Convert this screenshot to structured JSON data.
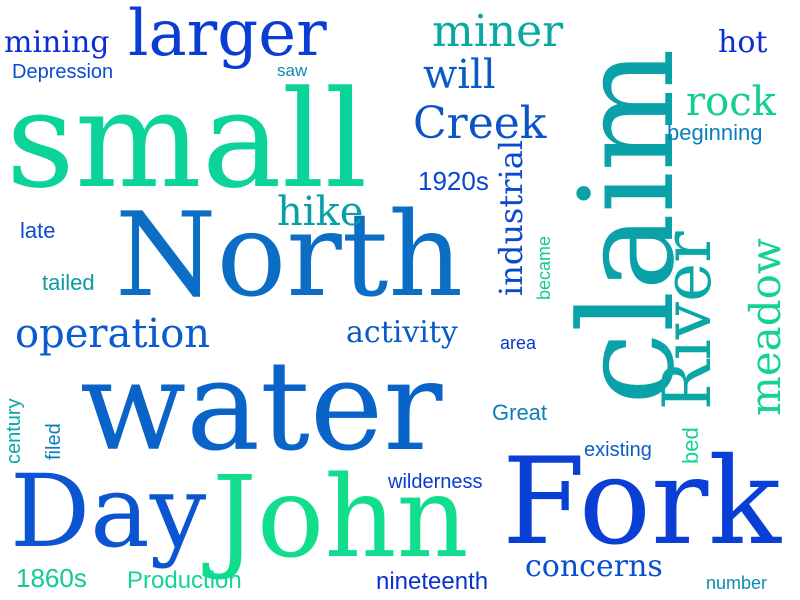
{
  "words": [
    {
      "text": "small",
      "color": "#0bd39a"
    },
    {
      "text": "water",
      "color": "#0a63c9"
    },
    {
      "text": "North",
      "color": "#0b6dc4"
    },
    {
      "text": "claim",
      "color": "#0aa2a8"
    },
    {
      "text": "Fork",
      "color": "#0a3fd6"
    },
    {
      "text": "John",
      "color": "#11de8d"
    },
    {
      "text": "Day",
      "color": "#0b55d2"
    },
    {
      "text": "larger",
      "color": "#0a3dd4"
    },
    {
      "text": "River",
      "color": "#0aa7a6"
    },
    {
      "text": "miner",
      "color": "#0aa8a2"
    },
    {
      "text": "Creek",
      "color": "#0a54c8"
    },
    {
      "text": "operation",
      "color": "#0a5ad0"
    },
    {
      "text": "meadow",
      "color": "#13d38e"
    },
    {
      "text": "hike",
      "color": "#0a9fa6"
    },
    {
      "text": "rock",
      "color": "#12cf8f"
    },
    {
      "text": "will",
      "color": "#0a5bc6"
    },
    {
      "text": "industrial",
      "color": "#0a49cc"
    },
    {
      "text": "mining",
      "color": "#0a2ed6"
    },
    {
      "text": "hot",
      "color": "#0a30d4"
    },
    {
      "text": "activity",
      "color": "#0a58c9"
    },
    {
      "text": "concerns",
      "color": "#0a4fd0"
    },
    {
      "text": "Production",
      "color": "#11d496"
    },
    {
      "text": "1860s",
      "color": "#12c994"
    },
    {
      "text": "1920s",
      "color": "#0a46cf"
    },
    {
      "text": "nineteenth",
      "color": "#0a32d0"
    },
    {
      "text": "Depression",
      "color": "#0a4ccf"
    },
    {
      "text": "beginning",
      "color": "#0a7fbd"
    },
    {
      "text": "Great",
      "color": "#0a7ebd"
    },
    {
      "text": "existing",
      "color": "#0a5fc2"
    },
    {
      "text": "wilderness",
      "color": "#0a3ccf"
    },
    {
      "text": "tailed",
      "color": "#0a9aa8"
    },
    {
      "text": "late",
      "color": "#0a4dcb"
    },
    {
      "text": "century",
      "color": "#0aa7a6"
    },
    {
      "text": "filed",
      "color": "#0a7fbd"
    },
    {
      "text": "became",
      "color": "#13c99a"
    },
    {
      "text": "bed",
      "color": "#13d19a"
    },
    {
      "text": "area",
      "color": "#0a36cf"
    },
    {
      "text": "number",
      "color": "#0a8cb4"
    },
    {
      "text": "saw",
      "color": "#0a8cb4"
    }
  ]
}
